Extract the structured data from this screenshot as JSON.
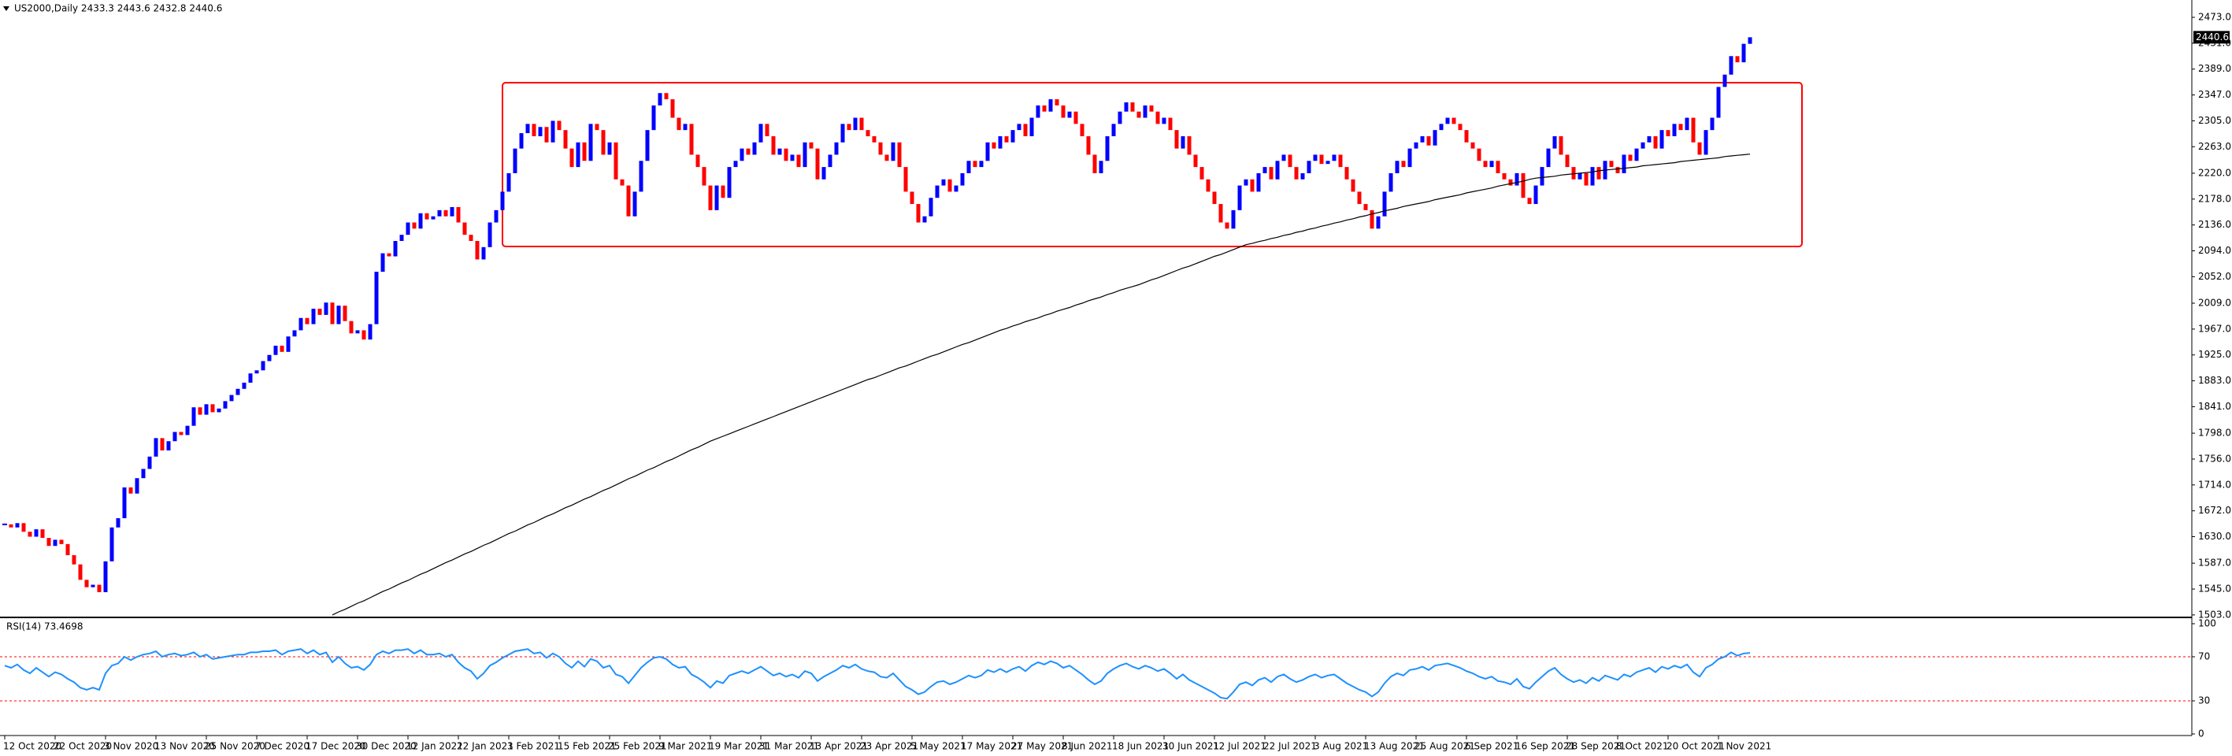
{
  "chart_data": {
    "type": "candlestick",
    "title": "US2000,Daily  2433.3 2443.6 2432.8 2440.6",
    "last_price_label": "2440.6",
    "up_color": "#0000ff",
    "down_color": "#ff0000",
    "categories": [
      "12 Oct 2020",
      null,
      null,
      null,
      null,
      null,
      null,
      null,
      "22 Oct 2020",
      null,
      null,
      null,
      null,
      null,
      null,
      null,
      "3 Nov 2020",
      null,
      null,
      null,
      null,
      null,
      null,
      null,
      "13 Nov 2020",
      null,
      null,
      null,
      null,
      null,
      null,
      null,
      "25 Nov 2020",
      null,
      null,
      null,
      null,
      null,
      null,
      null,
      "7 Dec 2020",
      null,
      null,
      null,
      null,
      null,
      null,
      null,
      "17 Dec 2020",
      null,
      null,
      null,
      null,
      null,
      null,
      null,
      "30 Dec 2020",
      null,
      null,
      null,
      null,
      null,
      null,
      null,
      "12 Jan 2021",
      null,
      null,
      null,
      null,
      null,
      null,
      null,
      "22 Jan 2021",
      null,
      null,
      null,
      null,
      null,
      null,
      null,
      "3 Feb 2021",
      null,
      null,
      null,
      null,
      null,
      null,
      null,
      "15 Feb 2021",
      null,
      null,
      null,
      null,
      null,
      null,
      null,
      "25 Feb 2021",
      null,
      null,
      null,
      null,
      null,
      null,
      null,
      "9 Mar 2021",
      null,
      null,
      null,
      null,
      null,
      null,
      null,
      "19 Mar 2021",
      null,
      null,
      null,
      null,
      null,
      null,
      null,
      "31 Mar 2021",
      null,
      null,
      null,
      null,
      null,
      null,
      null,
      "13 Apr 2021",
      null,
      null,
      null,
      null,
      null,
      null,
      null,
      "23 Apr 2021",
      null,
      null,
      null,
      null,
      null,
      null,
      null,
      "5 May 2021",
      null,
      null,
      null,
      null,
      null,
      null,
      null,
      "17 May 2021",
      null,
      null,
      null,
      null,
      null,
      null,
      null,
      "27 May 2021",
      null,
      null,
      null,
      null,
      null,
      null,
      null,
      "8 Jun 2021",
      null,
      null,
      null,
      null,
      null,
      null,
      null,
      "18 Jun 2021",
      null,
      null,
      null,
      null,
      null,
      null,
      null,
      "30 Jun 2021",
      null,
      null,
      null,
      null,
      null,
      null,
      null,
      "12 Jul 2021",
      null,
      null,
      null,
      null,
      null,
      null,
      null,
      "22 Jul 2021",
      null,
      null,
      null,
      null,
      null,
      null,
      null,
      "3 Aug 2021",
      null,
      null,
      null,
      null,
      null,
      null,
      null,
      "13 Aug 2021",
      null,
      null,
      null,
      null,
      null,
      null,
      null,
      "25 Aug 2021",
      null,
      null,
      null,
      null,
      null,
      null,
      null,
      "6 Sep 2021",
      null,
      null,
      null,
      null,
      null,
      null,
      null,
      "16 Sep 2021",
      null,
      null,
      null,
      null,
      null,
      null,
      null,
      "28 Sep 2021",
      null,
      null,
      null,
      null,
      null,
      null,
      null,
      "8 Oct 2021",
      null,
      null,
      null,
      null,
      null,
      null,
      null,
      "20 Oct 2021",
      null,
      null,
      null,
      null,
      null,
      null,
      null,
      "1 Nov 2021",
      null,
      null,
      null,
      null,
      null
    ],
    "close": [
      1650,
      1645,
      1652,
      1638,
      1630,
      1642,
      1628,
      1615,
      1625,
      1618,
      1600,
      1585,
      1560,
      1548,
      1552,
      1540,
      1590,
      1645,
      1660,
      1710,
      1700,
      1725,
      1740,
      1760,
      1790,
      1770,
      1785,
      1800,
      1795,
      1810,
      1840,
      1828,
      1845,
      1832,
      1838,
      1850,
      1860,
      1870,
      1880,
      1895,
      1900,
      1915,
      1925,
      1940,
      1930,
      1955,
      1965,
      1985,
      1975,
      2000,
      1990,
      2010,
      1975,
      2005,
      1980,
      1960,
      1965,
      1950,
      1975,
      2060,
      2090,
      2085,
      2110,
      2120,
      2140,
      2130,
      2155,
      2145,
      2150,
      2160,
      2150,
      2165,
      2140,
      2120,
      2110,
      2080,
      2100,
      2140,
      2160,
      2190,
      2220,
      2260,
      2285,
      2300,
      2280,
      2295,
      2270,
      2305,
      2290,
      2260,
      2230,
      2270,
      2240,
      2300,
      2290,
      2250,
      2270,
      2210,
      2200,
      2150,
      2190,
      2240,
      2290,
      2330,
      2350,
      2340,
      2310,
      2290,
      2300,
      2250,
      2230,
      2200,
      2160,
      2200,
      2180,
      2230,
      2240,
      2260,
      2250,
      2270,
      2300,
      2280,
      2250,
      2260,
      2240,
      2250,
      2230,
      2270,
      2260,
      2210,
      2230,
      2250,
      2270,
      2300,
      2290,
      2310,
      2290,
      2280,
      2270,
      2250,
      2240,
      2270,
      2230,
      2190,
      2170,
      2140,
      2150,
      2180,
      2200,
      2210,
      2190,
      2200,
      2220,
      2240,
      2230,
      2240,
      2270,
      2260,
      2280,
      2270,
      2290,
      2300,
      2280,
      2310,
      2330,
      2320,
      2340,
      2330,
      2310,
      2320,
      2300,
      2280,
      2250,
      2220,
      2240,
      2280,
      2300,
      2320,
      2335,
      2320,
      2310,
      2330,
      2320,
      2300,
      2310,
      2290,
      2260,
      2280,
      2250,
      2230,
      2210,
      2190,
      2170,
      2140,
      2130,
      2160,
      2200,
      2210,
      2190,
      2220,
      2230,
      2210,
      2240,
      2250,
      2230,
      2210,
      2220,
      2240,
      2250,
      2235,
      2240,
      2250,
      2230,
      2210,
      2190,
      2170,
      2160,
      2130,
      2150,
      2190,
      2220,
      2240,
      2230,
      2260,
      2270,
      2280,
      2265,
      2290,
      2300,
      2310,
      2300,
      2290,
      2270,
      2260,
      2240,
      2230,
      2240,
      2220,
      2210,
      2200,
      2220,
      2180,
      2170,
      2200,
      2230,
      2260,
      2280,
      2250,
      2230,
      2210,
      2220,
      2200,
      2230,
      2210,
      2240,
      2230,
      2220,
      2250,
      2240,
      2260,
      2270,
      2280,
      2260,
      2290,
      2280,
      2300,
      2290,
      2310,
      2270,
      2250,
      2290,
      2310,
      2360,
      2380,
      2410,
      2400,
      2430,
      2440.6
    ],
    "ma": {
      "color": "#000000",
      "values": [
        null,
        null,
        null,
        null,
        null,
        null,
        null,
        null,
        null,
        null,
        null,
        null,
        null,
        null,
        null,
        null,
        null,
        null,
        null,
        null,
        null,
        null,
        null,
        null,
        null,
        null,
        null,
        null,
        null,
        null,
        null,
        null,
        null,
        null,
        null,
        null,
        null,
        null,
        null,
        null,
        null,
        null,
        null,
        null,
        null,
        null,
        null,
        null,
        null,
        null,
        null,
        null,
        1503,
        1508,
        1512,
        1517,
        1522,
        1526,
        1531,
        1536,
        1541,
        1545,
        1550,
        1555,
        1559,
        1564,
        1569,
        1573,
        1578,
        1583,
        1588,
        1592,
        1597,
        1602,
        1606,
        1611,
        1616,
        1620,
        1625,
        1630,
        1635,
        1639,
        1644,
        1649,
        1653,
        1658,
        1663,
        1667,
        1672,
        1677,
        1681,
        1686,
        1691,
        1695,
        1700,
        1705,
        1709,
        1714,
        1719,
        1724,
        1728,
        1733,
        1738,
        1742,
        1747,
        1752,
        1756,
        1761,
        1766,
        1771,
        1775,
        1780,
        1785,
        1789,
        1793,
        1797,
        1801,
        1805,
        1809,
        1813,
        1817,
        1821,
        1825,
        1829,
        1833,
        1837,
        1841,
        1845,
        1849,
        1853,
        1857,
        1861,
        1865,
        1869,
        1873,
        1877,
        1881,
        1885,
        1888,
        1892,
        1896,
        1900,
        1904,
        1907,
        1911,
        1915,
        1919,
        1923,
        1926,
        1930,
        1934,
        1938,
        1942,
        1945,
        1949,
        1953,
        1957,
        1961,
        1965,
        1968,
        1972,
        1975,
        1979,
        1982,
        1985,
        1989,
        1992,
        1996,
        1999,
        2002,
        2006,
        2009,
        2013,
        2016,
        2019,
        2023,
        2026,
        2030,
        2033,
        2036,
        2039,
        2043,
        2047,
        2050,
        2054,
        2058,
        2062,
        2066,
        2069,
        2073,
        2077,
        2081,
        2085,
        2088,
        2092,
        2096,
        2100,
        2104,
        2106,
        2109,
        2111,
        2114,
        2116,
        2119,
        2121,
        2124,
        2126,
        2129,
        2131,
        2134,
        2136,
        2139,
        2141,
        2144,
        2146,
        2149,
        2151,
        2154,
        2156,
        2159,
        2161,
        2163,
        2166,
        2168,
        2170,
        2172,
        2174,
        2177,
        2179,
        2181,
        2183,
        2185,
        2188,
        2190,
        2192,
        2194,
        2196,
        2199,
        2201,
        2203,
        2205,
        2207,
        2210,
        2212,
        2213,
        2214,
        2215,
        2217,
        2218,
        2219,
        2220,
        2221,
        2222,
        2224,
        2225,
        2226,
        2227,
        2228,
        2229,
        2230,
        2232,
        2233,
        2234,
        2235,
        2236,
        2237,
        2239,
        2240,
        2241,
        2242,
        2243,
        2244,
        2245,
        2247,
        2248,
        2249,
        2250,
        2251
      ]
    },
    "ylim": [
      1499,
      2496
    ],
    "yticks": [
      {
        "value": 2473,
        "label": "2473.0"
      },
      {
        "value": 2431,
        "label": "2431.0"
      },
      {
        "value": 2389,
        "label": "2389.0"
      },
      {
        "value": 2347,
        "label": "2347.0"
      },
      {
        "value": 2305,
        "label": "2305.0"
      },
      {
        "value": 2263,
        "label": "2263.0"
      },
      {
        "value": 2220,
        "label": "2220.0"
      },
      {
        "value": 2178,
        "label": "2178.0"
      },
      {
        "value": 2136,
        "label": "2136.0"
      },
      {
        "value": 2094,
        "label": "2094.0"
      },
      {
        "value": 2052,
        "label": "2052.0"
      },
      {
        "value": 2009,
        "label": "2009.0"
      },
      {
        "value": 1967,
        "label": "1967.0"
      },
      {
        "value": 1925,
        "label": "1925.0"
      },
      {
        "value": 1883,
        "label": "1883.0"
      },
      {
        "value": 1841,
        "label": "1841.0"
      },
      {
        "value": 1798,
        "label": "1798.0"
      },
      {
        "value": 1756,
        "label": "1756.0"
      },
      {
        "value": 1714,
        "label": "1714.0"
      },
      {
        "value": 1672,
        "label": "1672.0"
      },
      {
        "value": 1630,
        "label": "1630.0"
      },
      {
        "value": 1587,
        "label": "1587.0"
      },
      {
        "value": 1545,
        "label": "1545.0"
      },
      {
        "value": 1503,
        "label": "1503.0"
      }
    ],
    "rsi": {
      "title": "RSI(14) 73.4698",
      "color": "#1e90ff",
      "level_color": "#ff0000",
      "ylim": [
        0,
        100
      ],
      "yticks": [
        0,
        30,
        70,
        100
      ],
      "values": [
        62,
        60,
        63,
        58,
        55,
        60,
        56,
        52,
        56,
        54,
        50,
        47,
        42,
        40,
        42,
        40,
        55,
        62,
        64,
        70,
        67,
        70,
        72,
        73,
        75,
        70,
        72,
        73,
        71,
        72,
        74,
        70,
        72,
        68,
        69,
        70,
        71,
        72,
        72,
        74,
        74,
        75,
        75,
        76,
        72,
        75,
        76,
        77,
        73,
        76,
        72,
        74,
        65,
        70,
        64,
        60,
        61,
        58,
        63,
        72,
        75,
        73,
        76,
        76,
        77,
        73,
        76,
        72,
        72,
        73,
        70,
        72,
        65,
        60,
        57,
        50,
        55,
        62,
        65,
        69,
        72,
        75,
        76,
        77,
        73,
        74,
        69,
        73,
        70,
        64,
        60,
        66,
        61,
        68,
        66,
        60,
        62,
        54,
        52,
        46,
        53,
        60,
        65,
        69,
        70,
        68,
        63,
        60,
        61,
        54,
        51,
        47,
        42,
        48,
        46,
        53,
        55,
        57,
        55,
        58,
        61,
        57,
        53,
        55,
        52,
        54,
        51,
        57,
        55,
        48,
        52,
        55,
        58,
        62,
        60,
        63,
        59,
        57,
        56,
        52,
        51,
        55,
        49,
        43,
        40,
        36,
        38,
        43,
        47,
        48,
        45,
        47,
        50,
        53,
        51,
        53,
        58,
        56,
        59,
        56,
        59,
        61,
        57,
        62,
        65,
        63,
        66,
        64,
        60,
        62,
        58,
        54,
        49,
        45,
        48,
        55,
        59,
        62,
        64,
        61,
        59,
        62,
        60,
        57,
        59,
        55,
        50,
        54,
        49,
        46,
        43,
        40,
        37,
        33,
        32,
        38,
        45,
        47,
        44,
        49,
        51,
        47,
        52,
        54,
        50,
        47,
        49,
        52,
        54,
        51,
        53,
        54,
        50,
        46,
        43,
        40,
        38,
        34,
        38,
        46,
        52,
        55,
        53,
        58,
        59,
        61,
        58,
        62,
        63,
        64,
        62,
        60,
        57,
        55,
        52,
        50,
        52,
        48,
        47,
        45,
        50,
        43,
        41,
        47,
        52,
        57,
        60,
        54,
        50,
        47,
        49,
        46,
        51,
        48,
        53,
        51,
        49,
        54,
        52,
        56,
        58,
        60,
        56,
        61,
        59,
        62,
        60,
        63,
        56,
        52,
        60,
        63,
        68,
        70,
        74,
        71,
        73,
        73.47
      ]
    }
  }
}
